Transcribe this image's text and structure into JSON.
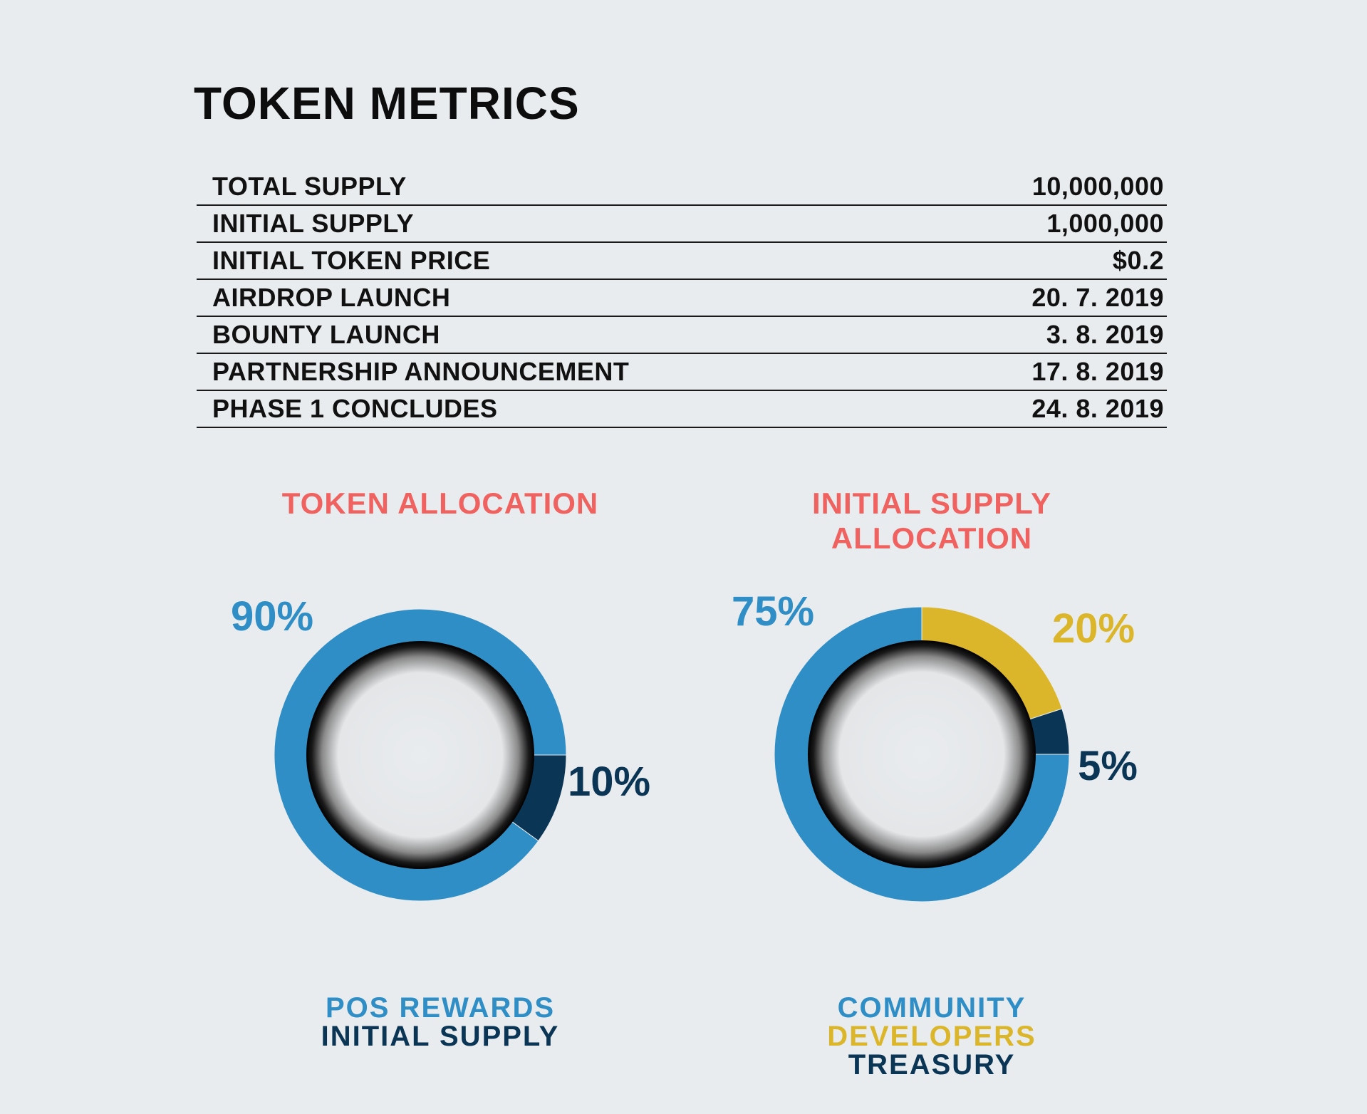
{
  "page": {
    "title": "TOKEN METRICS"
  },
  "metrics": [
    {
      "label": "TOTAL SUPPLY",
      "value": "10,000,000"
    },
    {
      "label": "INITIAL SUPPLY",
      "value": "1,000,000"
    },
    {
      "label": "INITIAL TOKEN PRICE",
      "value": "$0.2"
    },
    {
      "label": "AIRDROP LAUNCH",
      "value": "20. 7. 2019"
    },
    {
      "label": "BOUNTY LAUNCH",
      "value": "3. 8. 2019"
    },
    {
      "label": "PARTNERSHIP ANNOUNCEMENT",
      "value": "17. 8. 2019"
    },
    {
      "label": "PHASE 1 CONCLUDES",
      "value": "24. 8. 2019"
    }
  ],
  "colors": {
    "title_accent": "#f0625f",
    "blue": "#2f8ec5",
    "gold": "#dcb62a",
    "navy": "#0b3554",
    "background": "#e9ecef"
  },
  "chart_data": [
    {
      "type": "pie",
      "title": [
        "TOKEN ALLOCATION"
      ],
      "slices": [
        {
          "name": "POS REWARDS",
          "value": 90,
          "label": "90%",
          "color": "#2f8ec5"
        },
        {
          "name": "INITIAL SUPPLY",
          "value": 10,
          "label": "10%",
          "color": "#0b3554"
        }
      ]
    },
    {
      "type": "pie",
      "title": [
        "INITIAL SUPPLY",
        "ALLOCATION"
      ],
      "slices": [
        {
          "name": "COMMUNITY",
          "value": 75,
          "label": "75%",
          "color": "#2f8ec5"
        },
        {
          "name": "DEVELOPERS",
          "value": 20,
          "label": "20%",
          "color": "#dcb62a"
        },
        {
          "name": "TREASURY",
          "value": 5,
          "label": "5%",
          "color": "#0b3554"
        }
      ]
    }
  ]
}
